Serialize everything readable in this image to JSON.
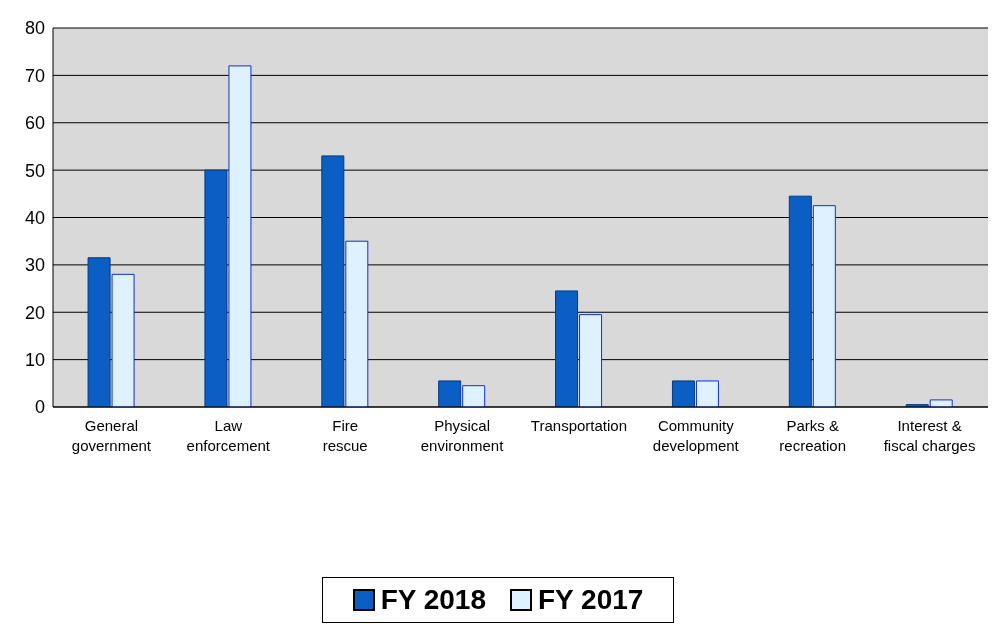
{
  "chart_data": {
    "type": "bar",
    "categories": [
      "General government",
      "Law enforcement",
      "Fire rescue",
      "Physical environment",
      "Transportation",
      "Community development",
      "Parks & recreation",
      "Interest & fiscal charges"
    ],
    "series": [
      {
        "name": "FY 2018",
        "color": "#0b5ec4",
        "values": [
          31.5,
          50,
          53,
          5.5,
          24.5,
          5.5,
          44.5,
          0.5
        ]
      },
      {
        "name": "FY 2017",
        "color": "#ddf1ff",
        "values": [
          28,
          72,
          35,
          4.5,
          19.5,
          5.5,
          42.5,
          1.5
        ]
      }
    ],
    "ylim": [
      0,
      80
    ],
    "yticks": [
      0,
      10,
      20,
      30,
      40,
      50,
      60,
      70,
      80
    ],
    "grid": "y",
    "legend": "bottom"
  }
}
